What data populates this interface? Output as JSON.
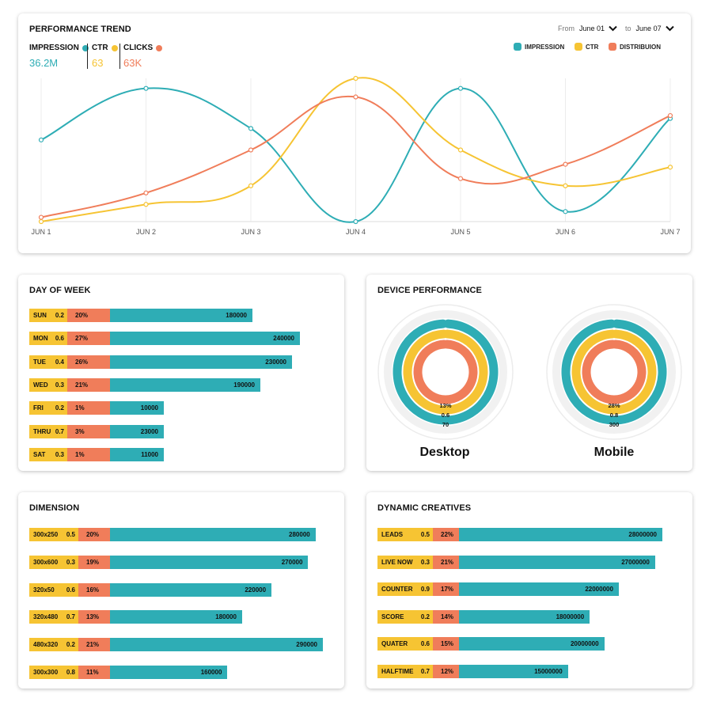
{
  "colors": {
    "impression": "#2eadb5",
    "ctr": "#f6c433",
    "clicks": "#f07d5a"
  },
  "trend": {
    "title": "PERFORMANCE TREND",
    "metrics": [
      {
        "label": "IMPRESSION",
        "value": "36.2M",
        "color": "#2eadb5"
      },
      {
        "label": "CTR",
        "value": "63",
        "color": "#f6c433"
      },
      {
        "label": "CLICKS",
        "value": "63K",
        "color": "#f07d5a"
      }
    ],
    "date_range": {
      "from_label": "From",
      "from_value": "June 01",
      "to_label": "to",
      "to_value": "June 07"
    },
    "legend": [
      {
        "label": "IMPRESSION",
        "color": "#2eadb5"
      },
      {
        "label": "CTR",
        "color": "#f6c433"
      },
      {
        "label": "DISTRIBUION",
        "color": "#f07d5a"
      }
    ]
  },
  "chart_data": [
    {
      "type": "line",
      "title": "PERFORMANCE TREND",
      "x": [
        "JUN 1",
        "JUN 2",
        "JUN 3",
        "JUN 4",
        "JUN 5",
        "JUN 6",
        "JUN 7"
      ],
      "ylim": [
        0,
        100
      ],
      "grid": "vertical",
      "legend_position": "top-right",
      "series": [
        {
          "name": "IMPRESSION",
          "color": "#2eadb5",
          "values": [
            57,
            93,
            65,
            0,
            93,
            7,
            72
          ]
        },
        {
          "name": "CTR",
          "color": "#f6c433",
          "values": [
            0,
            12,
            25,
            100,
            50,
            25,
            38
          ]
        },
        {
          "name": "DISTRIBUION",
          "color": "#f07d5a",
          "values": [
            3,
            20,
            50,
            87,
            30,
            40,
            74
          ]
        }
      ]
    },
    {
      "type": "bar",
      "title": "DAY OF WEEK",
      "categories": [
        "SUN",
        "MON",
        "TUE",
        "WED",
        "FRI",
        "THRU",
        "SAT"
      ],
      "series": [
        {
          "name": "CTR",
          "values": [
            0.2,
            0.6,
            0.4,
            0.3,
            0.2,
            0.7,
            0.3
          ]
        },
        {
          "name": "%",
          "values": [
            "20%",
            "27%",
            "26%",
            "21%",
            "1%",
            "3%",
            "1%"
          ]
        },
        {
          "name": "IMPRESSION",
          "values": [
            180000,
            240000,
            230000,
            190000,
            10000,
            23000,
            11000
          ]
        }
      ]
    },
    {
      "type": "bar",
      "title": "DIMENSION",
      "categories": [
        "300x250",
        "300x600",
        "320x50",
        "320x480",
        "480x320",
        "300x300"
      ],
      "series": [
        {
          "name": "CTR",
          "values": [
            0.5,
            0.3,
            0.6,
            0.7,
            0.2,
            0.8
          ]
        },
        {
          "name": "%",
          "values": [
            "20%",
            "19%",
            "16%",
            "13%",
            "21%",
            "11%"
          ]
        },
        {
          "name": "IMPRESSION",
          "values": [
            280000,
            270000,
            220000,
            180000,
            290000,
            160000
          ]
        }
      ]
    },
    {
      "type": "bar",
      "title": "DYNAMIC CREATIVES",
      "categories": [
        "LEADS",
        "LIVE NOW",
        "COUNTER",
        "SCORE",
        "QUATER",
        "HALFTIME"
      ],
      "series": [
        {
          "name": "CTR",
          "values": [
            0.5,
            0.3,
            0.9,
            0.2,
            0.6,
            0.7
          ]
        },
        {
          "name": "%",
          "values": [
            "22%",
            "21%",
            "17%",
            "14%",
            "15%",
            "12%"
          ]
        },
        {
          "name": "IMPRESSION",
          "values": [
            28000000,
            27000000,
            22000000,
            18000000,
            20000000,
            15000000
          ]
        }
      ]
    },
    {
      "type": "pie",
      "title": "DEVICE PERFORMANCE",
      "categories": [
        "Desktop",
        "Mobile"
      ],
      "series": [
        {
          "name": "IMPRESSION",
          "values": [
            "70",
            "300"
          ]
        },
        {
          "name": "CTR",
          "values": [
            "0.6",
            "0.8"
          ]
        },
        {
          "name": "DISTRIBUION",
          "values": [
            "13%",
            "28%"
          ]
        }
      ]
    }
  ],
  "device": {
    "title": "DEVICE PERFORMANCE",
    "devices": [
      {
        "name": "Desktop",
        "clicks_label": "13%",
        "ctr_label": "0.6",
        "impr_label": "70"
      },
      {
        "name": "Mobile",
        "clicks_label": "28%",
        "ctr_label": "0.8",
        "impr_label": "300"
      }
    ]
  },
  "dow": {
    "title": "DAY OF WEEK",
    "max": 260000,
    "rows": [
      {
        "label": "SUN",
        "ctr": "0.2",
        "pct": "20%",
        "value": 180000
      },
      {
        "label": "MON",
        "ctr": "0.6",
        "pct": "27%",
        "value": 240000
      },
      {
        "label": "TUE",
        "ctr": "0.4",
        "pct": "26%",
        "value": 230000
      },
      {
        "label": "WED",
        "ctr": "0.3",
        "pct": "21%",
        "value": 190000
      },
      {
        "label": "FRI",
        "ctr": "0.2",
        "pct": "1%",
        "value": 10000
      },
      {
        "label": "THRU",
        "ctr": "0.7",
        "pct": "3%",
        "value": 23000
      },
      {
        "label": "SAT",
        "ctr": "0.3",
        "pct": "1%",
        "value": 11000
      }
    ]
  },
  "dim": {
    "title": "DIMENSION",
    "max": 290000,
    "rows": [
      {
        "label": "300x250",
        "ctr": "0.5",
        "pct": "20%",
        "value": 280000
      },
      {
        "label": "300x600",
        "ctr": "0.3",
        "pct": "19%",
        "value": 270000
      },
      {
        "label": "320x50",
        "ctr": "0.6",
        "pct": "16%",
        "value": 220000
      },
      {
        "label": "320x480",
        "ctr": "0.7",
        "pct": "13%",
        "value": 180000
      },
      {
        "label": "480x320",
        "ctr": "0.2",
        "pct": "21%",
        "value": 290000
      },
      {
        "label": "300x300",
        "ctr": "0.8",
        "pct": "11%",
        "value": 160000
      }
    ]
  },
  "dyn": {
    "title": "DYNAMIC CREATIVES",
    "max": 28000000,
    "rows": [
      {
        "label": "LEADS",
        "ctr": "0.5",
        "pct": "22%",
        "value": 28000000
      },
      {
        "label": "LIVE NOW",
        "ctr": "0.3",
        "pct": "21%",
        "value": 27000000
      },
      {
        "label": "COUNTER",
        "ctr": "0.9",
        "pct": "17%",
        "value": 22000000
      },
      {
        "label": "SCORE",
        "ctr": "0.2",
        "pct": "14%",
        "value": 18000000
      },
      {
        "label": "QUATER",
        "ctr": "0.6",
        "pct": "15%",
        "value": 20000000
      },
      {
        "label": "HALFTIME",
        "ctr": "0.7",
        "pct": "12%",
        "value": 15000000
      }
    ]
  }
}
